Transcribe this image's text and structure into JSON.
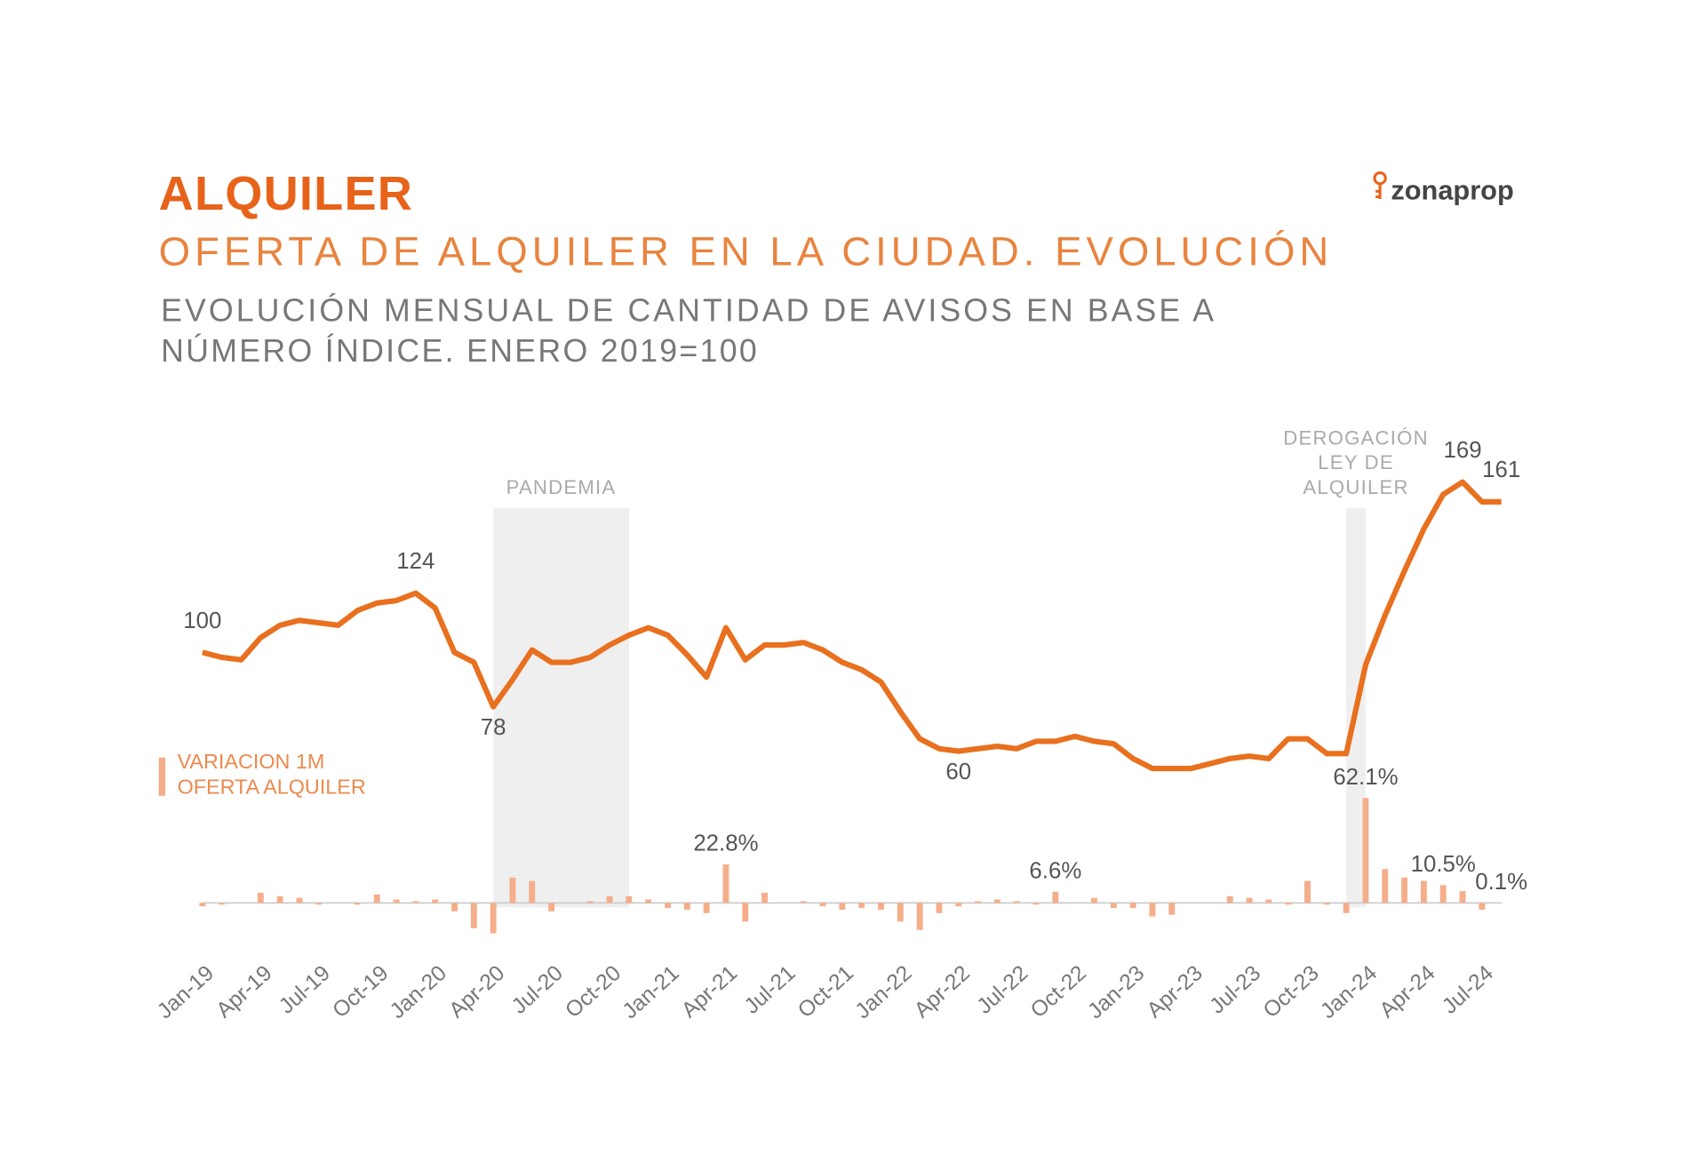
{
  "chart_data": {
    "type": "line",
    "title": "ALQUILER",
    "subtitle": "OFERTA DE ALQUILER EN LA CIUDAD. EVOLUCIÓN",
    "description": [
      "EVOLUCIÓN MENSUAL DE CANTIDAD DE AVISOS EN BASE A",
      "NÚMERO ÍNDICE. ENERO 2019=100"
    ],
    "brand": "zonaprop",
    "categories": [
      "Jan-19",
      null,
      null,
      "Apr-19",
      null,
      null,
      "Jul-19",
      null,
      null,
      "Oct-19",
      null,
      null,
      "Jan-20",
      null,
      null,
      "Apr-20",
      null,
      null,
      "Jul-20",
      null,
      null,
      "Oct-20",
      null,
      null,
      "Jan-21",
      null,
      null,
      "Apr-21",
      null,
      null,
      "Jul-21",
      null,
      null,
      "Oct-21",
      null,
      null,
      "Jan-22",
      null,
      null,
      "Apr-22",
      null,
      null,
      "Jul-22",
      null,
      null,
      "Oct-22",
      null,
      null,
      "Jan-23",
      null,
      null,
      "Apr-23",
      null,
      null,
      "Jul-23",
      null,
      null,
      "Oct-23",
      null,
      null,
      "Jan-24",
      null,
      null,
      "Apr-24",
      null,
      null,
      "Jul-24",
      null
    ],
    "series": [
      {
        "type": "line",
        "color": "#e8701e",
        "values": [
          100,
          98,
          97,
          106,
          111,
          113,
          112,
          111,
          117,
          120,
          121,
          124,
          118,
          100,
          96,
          78,
          89,
          101,
          96,
          96,
          98,
          103,
          107,
          110,
          107,
          99,
          90,
          110,
          97,
          103,
          103,
          104,
          101,
          96,
          93,
          88,
          76,
          65,
          61,
          60,
          61,
          62,
          61,
          64,
          64,
          66,
          64,
          63,
          57,
          53,
          53,
          53,
          55,
          57,
          58,
          57,
          65,
          65,
          59,
          59,
          95,
          115,
          133,
          150,
          164,
          169,
          161,
          161
        ],
        "value_labels": [
          "100",
          null,
          null,
          null,
          null,
          null,
          null,
          null,
          null,
          null,
          null,
          "124",
          null,
          null,
          null,
          "78",
          null,
          null,
          null,
          null,
          null,
          null,
          null,
          null,
          null,
          null,
          null,
          null,
          null,
          null,
          null,
          null,
          null,
          null,
          null,
          null,
          null,
          null,
          null,
          "60",
          null,
          null,
          null,
          null,
          null,
          null,
          null,
          null,
          null,
          null,
          null,
          null,
          null,
          null,
          null,
          null,
          null,
          null,
          null,
          null,
          null,
          null,
          null,
          null,
          null,
          "169",
          null,
          "161"
        ]
      },
      {
        "type": "bar",
        "name": "VARIACION 1M OFERTA ALQUILER",
        "color": "#f4ae8a",
        "values": [
          -2,
          -1,
          0,
          6,
          4,
          3,
          -1,
          0,
          -1,
          5,
          2,
          1,
          2,
          -5,
          -15,
          -18,
          15,
          13,
          -5,
          0,
          1,
          4,
          4,
          2,
          -3,
          -4,
          -6,
          22.8,
          -11,
          6,
          0,
          1,
          -2,
          -4,
          -3,
          -4,
          -11,
          -16,
          -6,
          -2,
          1,
          2,
          1,
          -1,
          6.6,
          0,
          3,
          -3,
          -3,
          -8,
          -7,
          0,
          0,
          4,
          3,
          2,
          -1,
          13,
          -1,
          -6,
          62.1,
          20,
          15,
          13,
          10.5,
          7,
          -4,
          0.1
        ],
        "value_labels": [
          null,
          null,
          null,
          null,
          null,
          null,
          null,
          null,
          null,
          null,
          null,
          null,
          null,
          null,
          null,
          null,
          null,
          null,
          null,
          null,
          null,
          null,
          null,
          null,
          null,
          null,
          null,
          "22.8%",
          null,
          null,
          null,
          null,
          null,
          null,
          null,
          null,
          null,
          null,
          null,
          null,
          null,
          null,
          null,
          null,
          "6.6%",
          null,
          null,
          null,
          null,
          null,
          null,
          null,
          null,
          null,
          null,
          null,
          null,
          null,
          null,
          null,
          "62.1%",
          null,
          null,
          null,
          "10.5%",
          null,
          null,
          "0.1%"
        ]
      }
    ],
    "shaded_regions": [
      {
        "label": [
          "PANDEMIA"
        ],
        "start": 15,
        "end": 22
      },
      {
        "label": [
          "DEROGACIÓN",
          "LEY DE",
          "ALQUILER"
        ],
        "start": 59,
        "end": 60
      }
    ]
  }
}
